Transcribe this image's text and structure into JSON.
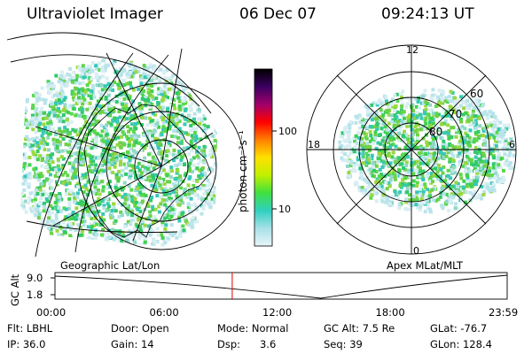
{
  "header": {
    "instrument": "Ultraviolet Imager",
    "date": "06 Dec 07",
    "time": "09:24:13 UT"
  },
  "colorbar": {
    "unit": "photon cm⁻²s⁻¹",
    "ticks": [
      "100",
      "10"
    ],
    "stops": [
      "#000000",
      "#3b0060",
      "#a0006a",
      "#ff0000",
      "#ff8000",
      "#ffe000",
      "#c0f000",
      "#40e040",
      "#30d0c0",
      "#a8e0e8",
      "#e8f4f8"
    ]
  },
  "panels": {
    "left_label": "Geographic Lat/Lon",
    "right_label": "Apex MLat/MLT",
    "polar": {
      "mlt_labels": [
        "12",
        "18",
        "6",
        "0"
      ],
      "lat_labels": [
        "60",
        "70",
        "80"
      ]
    }
  },
  "altitude_plot": {
    "ylabel": "GC Alt",
    "yticks": [
      "9.0",
      "1.8"
    ],
    "xticks": [
      "00:00",
      "06:00",
      "12:00",
      "18:00",
      "23:59"
    ],
    "current_time_fraction": 0.392,
    "marker_color": "#e00000"
  },
  "status": {
    "flt_label": "Flt:",
    "flt_value": "LBHL",
    "ip_label": "IP:",
    "ip_value": "36.0",
    "door_label": "Door:",
    "door_value": "Open",
    "gain_label": "Gain:",
    "gain_value": "14",
    "mode_label": "Mode:",
    "mode_value": "Normal",
    "dsp_label": "Dsp:",
    "dsp_value": "3.6",
    "gcalt_label": "GC Alt:",
    "gcalt_value": "7.5 Re",
    "seq_label": "Seq:",
    "seq_value": "39",
    "glat_label": "GLat:",
    "glat_value": "-76.7",
    "glon_label": "GLon:",
    "glon_value": "128.4"
  }
}
